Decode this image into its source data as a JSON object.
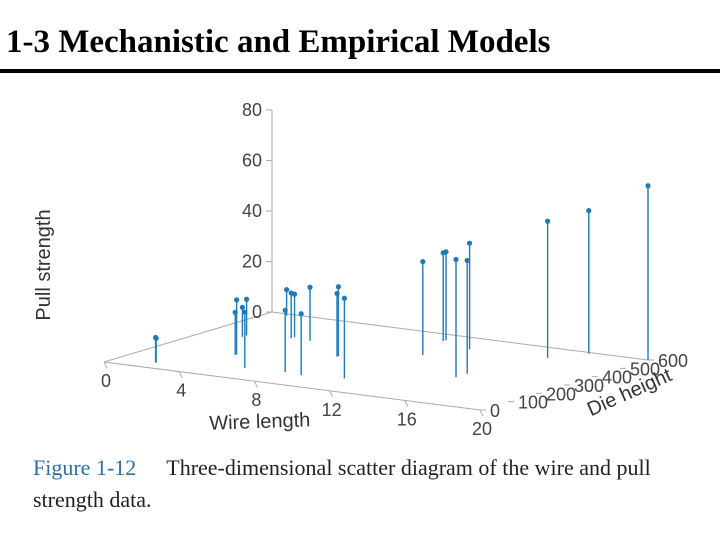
{
  "slide": {
    "title": "1-3   Mechanistic and Empirical Models"
  },
  "caption": {
    "label": "Figure 1-12",
    "text": "Three-dimensional scatter diagram of the wire and pull strength data."
  },
  "colors": {
    "points": "#1f7ab8",
    "axes": "#aaaaaa",
    "caption_label": "#2c6fa6"
  },
  "chart_data": {
    "type": "scatter3d",
    "title": "",
    "xlabel": "Wire length",
    "ylabel": "Die height",
    "zlabel": "Pull strength",
    "xlim": [
      0,
      20
    ],
    "ylim": [
      0,
      600
    ],
    "zlim": [
      0,
      80
    ],
    "xticks": [
      "0",
      "4",
      "8",
      "12",
      "16",
      "20"
    ],
    "yticks": [
      "0",
      "100",
      "200",
      "300",
      "400",
      "500",
      "600"
    ],
    "zticks": [
      "0",
      "20",
      "40",
      "60",
      "80"
    ],
    "points": [
      {
        "x": 2,
        "y": 50,
        "z": 9.95
      },
      {
        "x": 8,
        "y": 110,
        "z": 24.45
      },
      {
        "x": 11,
        "y": 120,
        "z": 31.75
      },
      {
        "x": 10,
        "y": 550,
        "z": 35.0
      },
      {
        "x": 8,
        "y": 295,
        "z": 25.02
      },
      {
        "x": 4,
        "y": 200,
        "z": 16.86
      },
      {
        "x": 2,
        "y": 375,
        "z": 14.38
      },
      {
        "x": 2,
        "y": 52,
        "z": 9.6
      },
      {
        "x": 9,
        "y": 100,
        "z": 24.35
      },
      {
        "x": 8,
        "y": 300,
        "z": 27.5
      },
      {
        "x": 4,
        "y": 412,
        "z": 17.08
      },
      {
        "x": 11,
        "y": 400,
        "z": 37.0
      },
      {
        "x": 12,
        "y": 500,
        "z": 41.95
      },
      {
        "x": 2,
        "y": 360,
        "z": 11.66
      },
      {
        "x": 4,
        "y": 205,
        "z": 21.65
      },
      {
        "x": 4,
        "y": 400,
        "z": 17.89
      },
      {
        "x": 20,
        "y": 600,
        "z": 69.0
      },
      {
        "x": 1,
        "y": 585,
        "z": 10.3
      },
      {
        "x": 10,
        "y": 540,
        "z": 34.93
      },
      {
        "x": 15,
        "y": 250,
        "z": 46.59
      },
      {
        "x": 15,
        "y": 290,
        "z": 44.88
      },
      {
        "x": 16,
        "y": 510,
        "z": 54.12
      },
      {
        "x": 17,
        "y": 590,
        "z": 56.63
      },
      {
        "x": 6,
        "y": 100,
        "z": 22.13
      },
      {
        "x": 5,
        "y": 400,
        "z": 21.15
      }
    ]
  }
}
